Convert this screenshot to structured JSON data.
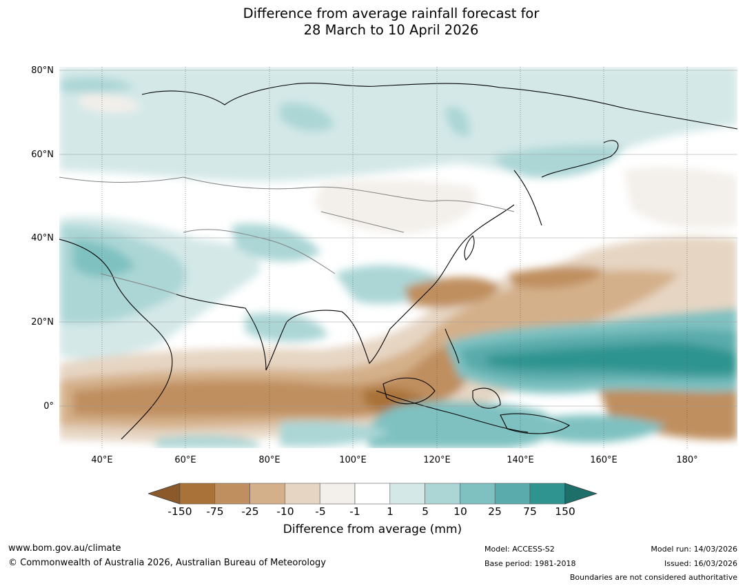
{
  "title_line1": "Difference from average rainfall forecast for",
  "title_line2": "28 March to 10 April 2026",
  "map": {
    "lat_labels": [
      "80°N",
      "60°N",
      "40°N",
      "20°N",
      "0°"
    ],
    "lon_labels": [
      "40°E",
      "60°E",
      "80°E",
      "100°E",
      "120°E",
      "140°E",
      "160°E",
      "180°"
    ]
  },
  "colorbar": {
    "label": "Difference from average (mm)",
    "ticks": [
      "-150",
      "-75",
      "-25",
      "-10",
      "-5",
      "-1",
      "1",
      "5",
      "10",
      "25",
      "75",
      "150"
    ],
    "colors": [
      "#8c5a2a",
      "#a97238",
      "#bf8f5f",
      "#d4b08a",
      "#e6d5c3",
      "#f3efea",
      "#ffffff",
      "#d4e8e8",
      "#acd6d6",
      "#7fc1c1",
      "#5aabab",
      "#2f9490",
      "#1e6e6a"
    ]
  },
  "footer": {
    "website": "www.bom.gov.au/climate",
    "copyright": "© Commonwealth of Australia 2026, Australian Bureau of Meteorology",
    "model": "Model: ACCESS-S2",
    "base_period": "Base period: 1981-2018",
    "model_run": "Model run: 14/03/2026",
    "issued": "Issued: 16/03/2026",
    "boundaries_note": "Boundaries are not considered authoritative"
  }
}
